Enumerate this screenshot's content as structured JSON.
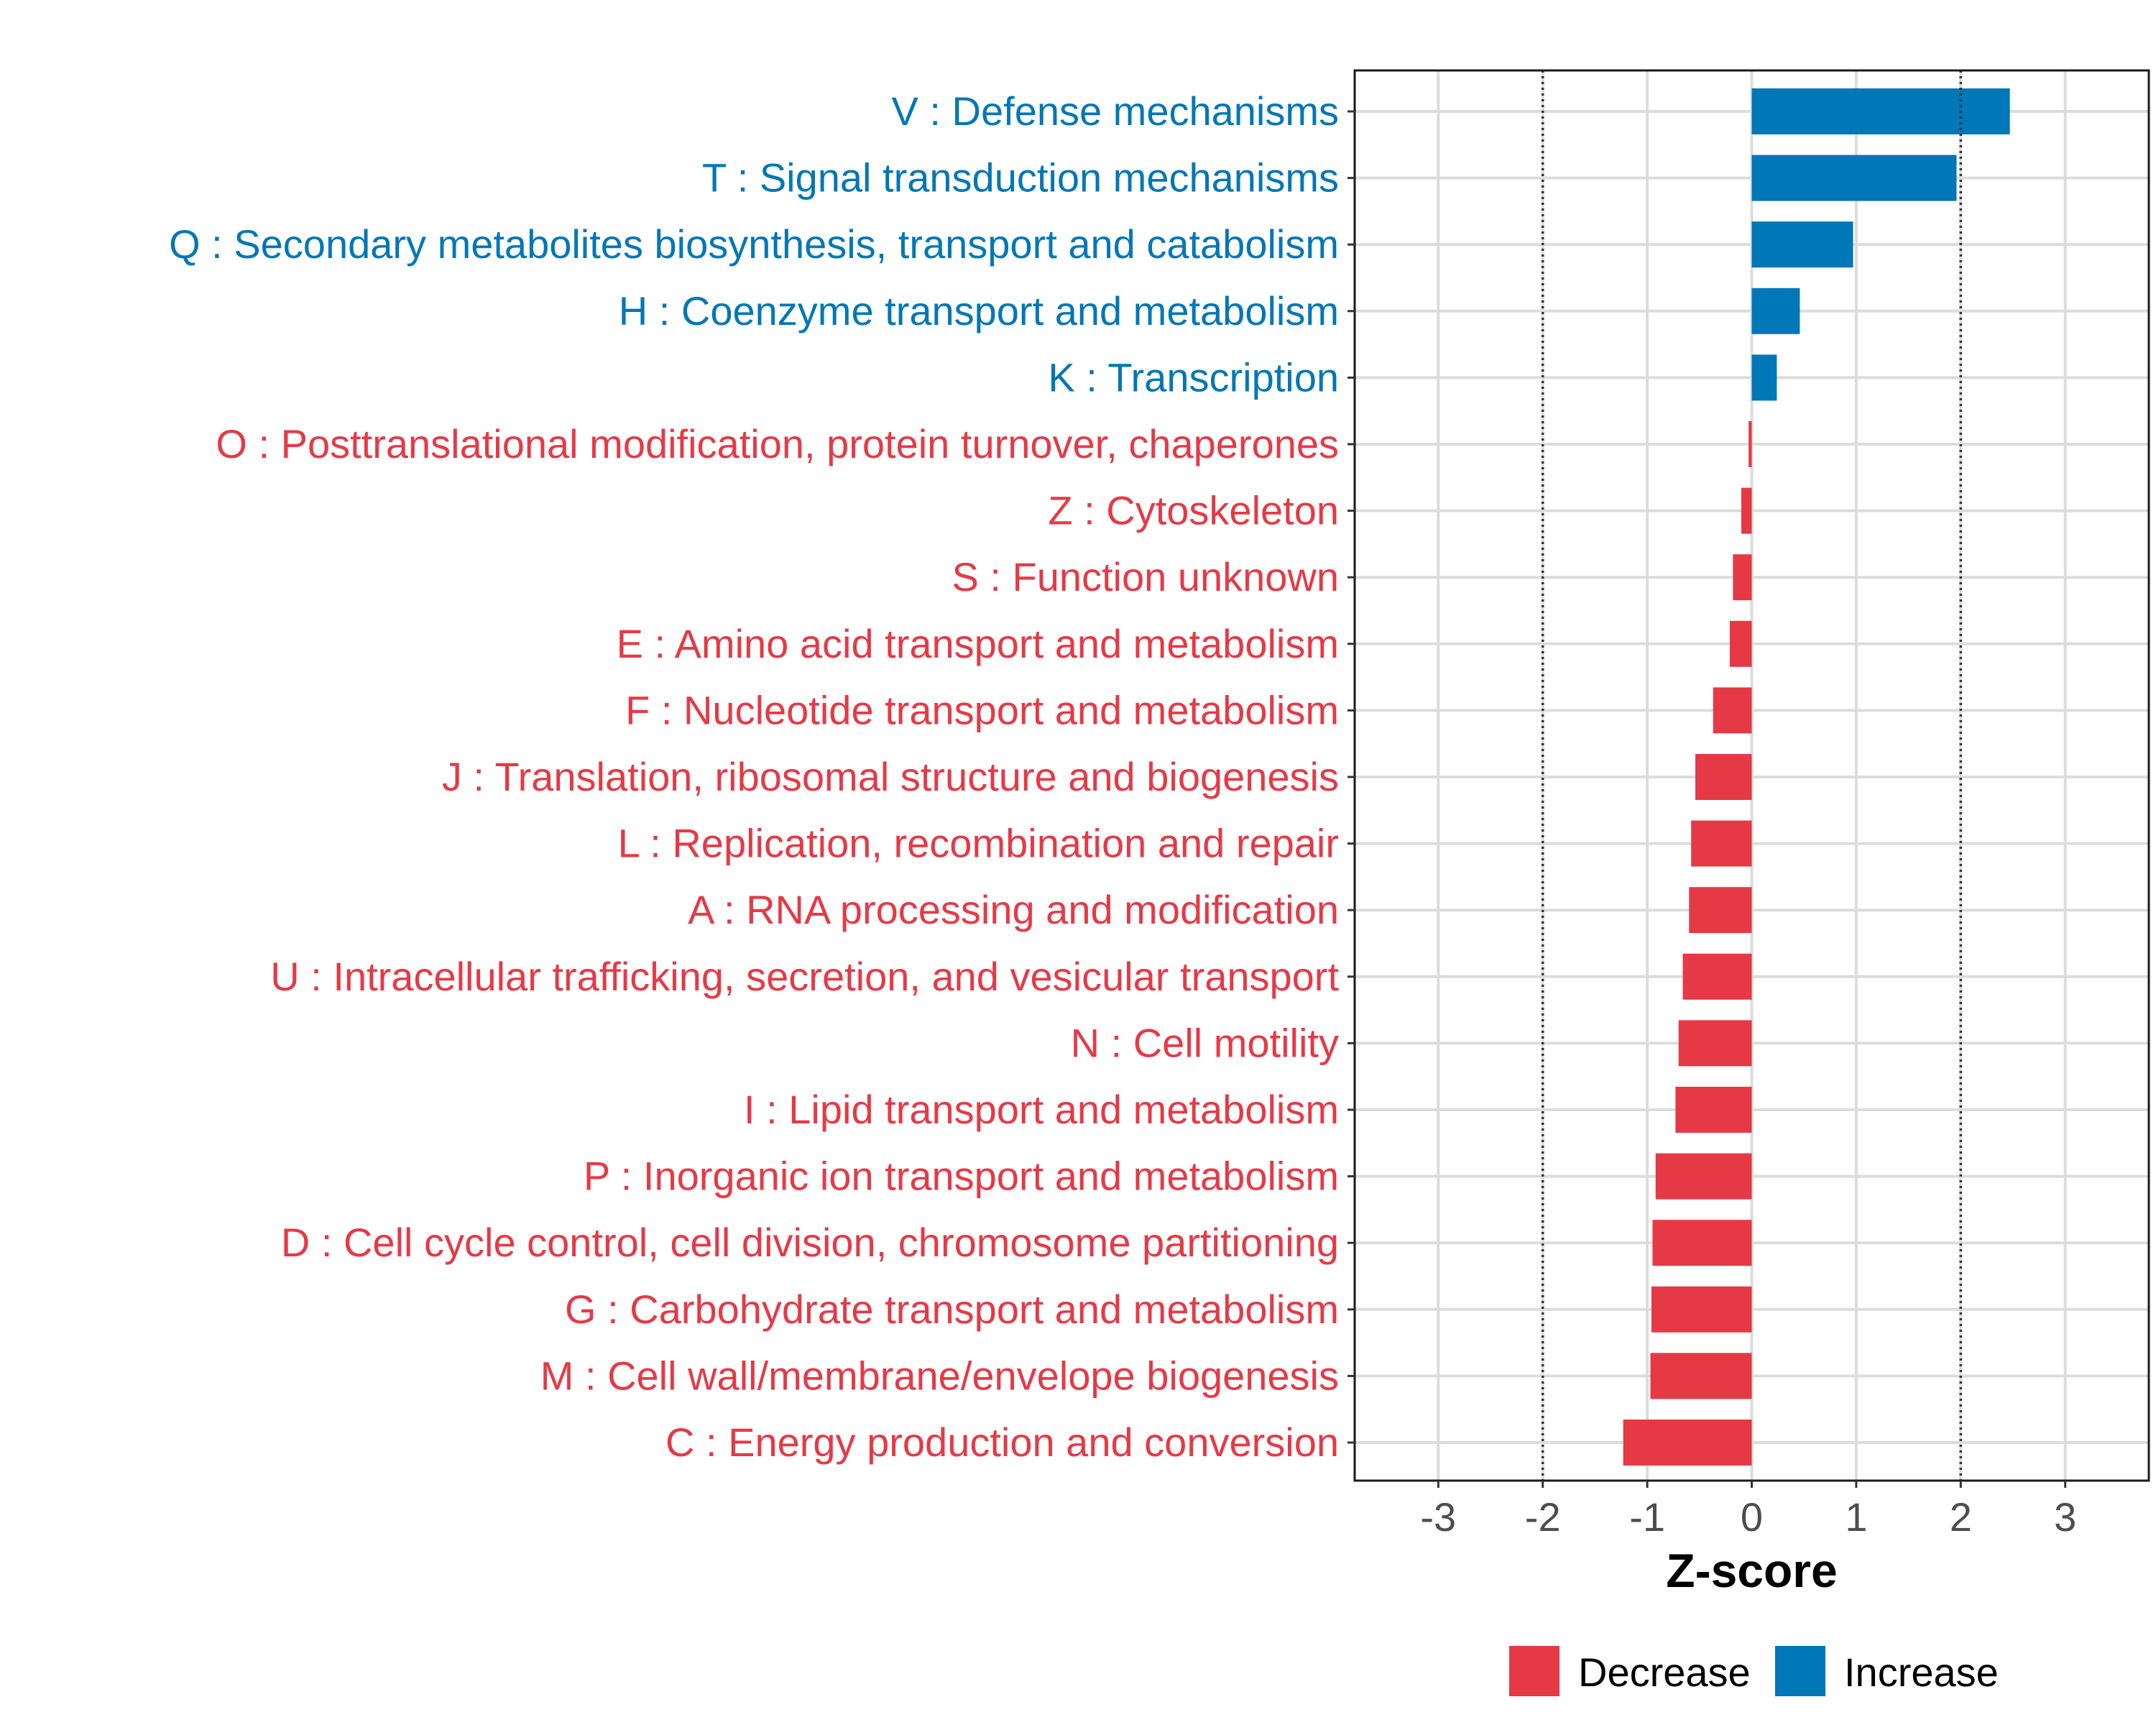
{
  "chart_data": {
    "type": "bar",
    "orientation": "horizontal",
    "xlabel": "Z-score",
    "xlim": [
      -3.8,
      3.8
    ],
    "xticks": [
      -3,
      -2,
      -1,
      0,
      1,
      2,
      3
    ],
    "xtick_labels": [
      "-3",
      "-2",
      "-1",
      "0",
      "1",
      "2",
      "3"
    ],
    "reference_lines": [
      -2,
      2
    ],
    "grid": true,
    "categories": [
      "V : Defense mechanisms",
      "T : Signal transduction mechanisms",
      "Q : Secondary metabolites biosynthesis, transport and catabolism",
      "H : Coenzyme transport and metabolism",
      "K : Transcription",
      "O : Posttranslational modification, protein turnover, chaperones",
      "Z : Cytoskeleton",
      "S : Function unknown",
      "E : Amino acid transport and metabolism",
      "F : Nucleotide transport and metabolism",
      "J : Translation, ribosomal structure and biogenesis",
      "L : Replication, recombination and repair",
      "A : RNA processing and modification",
      "U : Intracellular trafficking, secretion, and vesicular transport",
      "N : Cell motility",
      "I : Lipid transport and metabolism",
      "P : Inorganic ion transport and metabolism",
      "D : Cell cycle control, cell division, chromosome partitioning",
      "G : Carbohydrate transport and metabolism",
      "M : Cell wall/membrane/envelope biogenesis",
      "C : Energy production and conversion"
    ],
    "values": [
      2.47,
      1.96,
      0.97,
      0.46,
      0.24,
      -0.03,
      -0.1,
      -0.18,
      -0.21,
      -0.37,
      -0.54,
      -0.58,
      -0.6,
      -0.66,
      -0.7,
      -0.73,
      -0.92,
      -0.95,
      -0.96,
      -0.97,
      -1.23
    ],
    "groups": [
      "Increase",
      "Increase",
      "Increase",
      "Increase",
      "Increase",
      "Decrease",
      "Decrease",
      "Decrease",
      "Decrease",
      "Decrease",
      "Decrease",
      "Decrease",
      "Decrease",
      "Decrease",
      "Decrease",
      "Decrease",
      "Decrease",
      "Decrease",
      "Decrease",
      "Decrease",
      "Decrease"
    ],
    "legend": {
      "position": "bottom",
      "items": [
        {
          "label": "Decrease",
          "color": "#E63946"
        },
        {
          "label": "Increase",
          "color": "#0077B6"
        }
      ]
    },
    "colors": {
      "Decrease": "#E63946",
      "Increase": "#0077B6"
    }
  }
}
